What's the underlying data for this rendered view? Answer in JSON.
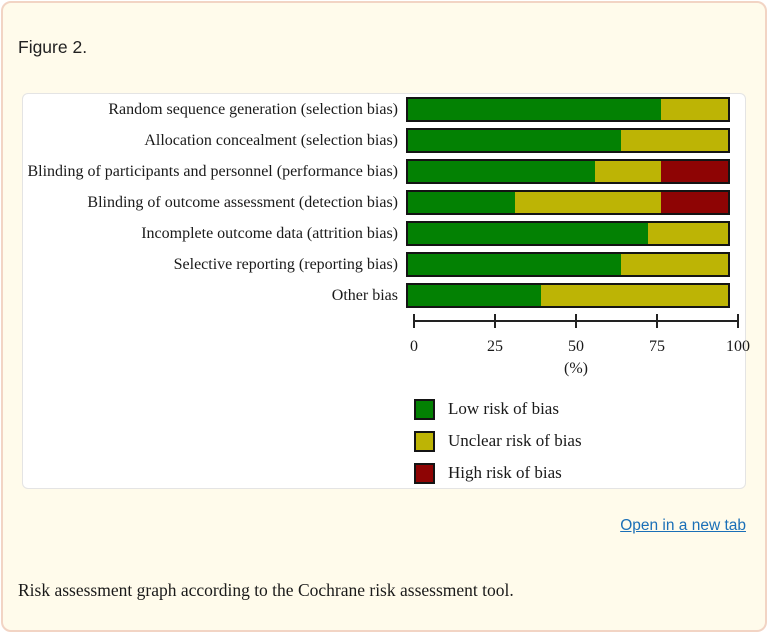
{
  "page": {
    "figure_label": "Figure 2.",
    "open_link_label": "Open in a new tab",
    "caption": "Risk assessment graph according to the Cochrane risk assessment tool.",
    "colors": {
      "page_background": "#FFFBEB",
      "page_border": "#F2D4C4",
      "link_blue": "#1A6FB7"
    }
  },
  "chart_data": {
    "type": "bar",
    "orientation": "horizontal",
    "stacked": true,
    "categories": [
      "Random sequence generation (selection bias)",
      "Allocation concealment (selection bias)",
      "Blinding of participants and personnel (performance bias)",
      "Blinding of outcome assessment (detection bias)",
      "Incomplete outcome data (attrition bias)",
      "Selective reporting (reporting bias)",
      "Other bias"
    ],
    "series": [
      {
        "name": "Low risk of bias",
        "color": "#038103",
        "values": [
          79.2,
          66.7,
          58.3,
          33.3,
          75.0,
          66.7,
          41.7
        ]
      },
      {
        "name": "Unclear risk of bias",
        "color": "#BDB405",
        "values": [
          20.8,
          33.3,
          20.8,
          45.8,
          25.0,
          33.3,
          58.3
        ]
      },
      {
        "name": "High risk of bias",
        "color": "#8E0404",
        "values": [
          0,
          0,
          20.8,
          20.8,
          0,
          0,
          0
        ]
      }
    ],
    "xlabel": "(%)",
    "x_ticks": [
      0,
      25,
      50,
      75,
      100
    ],
    "xlim": [
      0,
      100
    ],
    "grid": false,
    "legend_position": "bottom-left"
  }
}
